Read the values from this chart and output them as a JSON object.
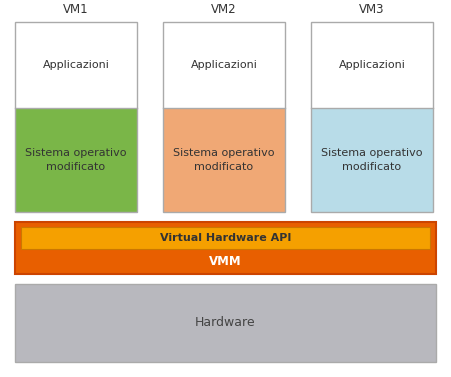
{
  "bg_color": "#ffffff",
  "fig_width": 4.51,
  "fig_height": 3.77,
  "dpi": 100,
  "vm_labels": [
    "VM1",
    "VM2",
    "VM3"
  ],
  "app_label": "Applicazioni",
  "so_label": "Sistema operativo\nmodificato",
  "so_colors": [
    "#7ab648",
    "#f0a875",
    "#b8dce8"
  ],
  "vm_border_color": "#aaaaaa",
  "api_label": "Virtual Hardware API",
  "api_bg": "#f5a000",
  "vmm_label": "VMM",
  "vmm_bg": "#e85f00",
  "vmm_border": "#cc4400",
  "hw_label": "Hardware",
  "hw_bg": "#b8b8be",
  "hw_border": "#aaaaaa",
  "label_fontsize": 8.0,
  "vm_label_fontsize": 8.5,
  "hw_fontsize": 9.0,
  "vmm_fontsize": 8.5,
  "api_fontsize": 8.0
}
